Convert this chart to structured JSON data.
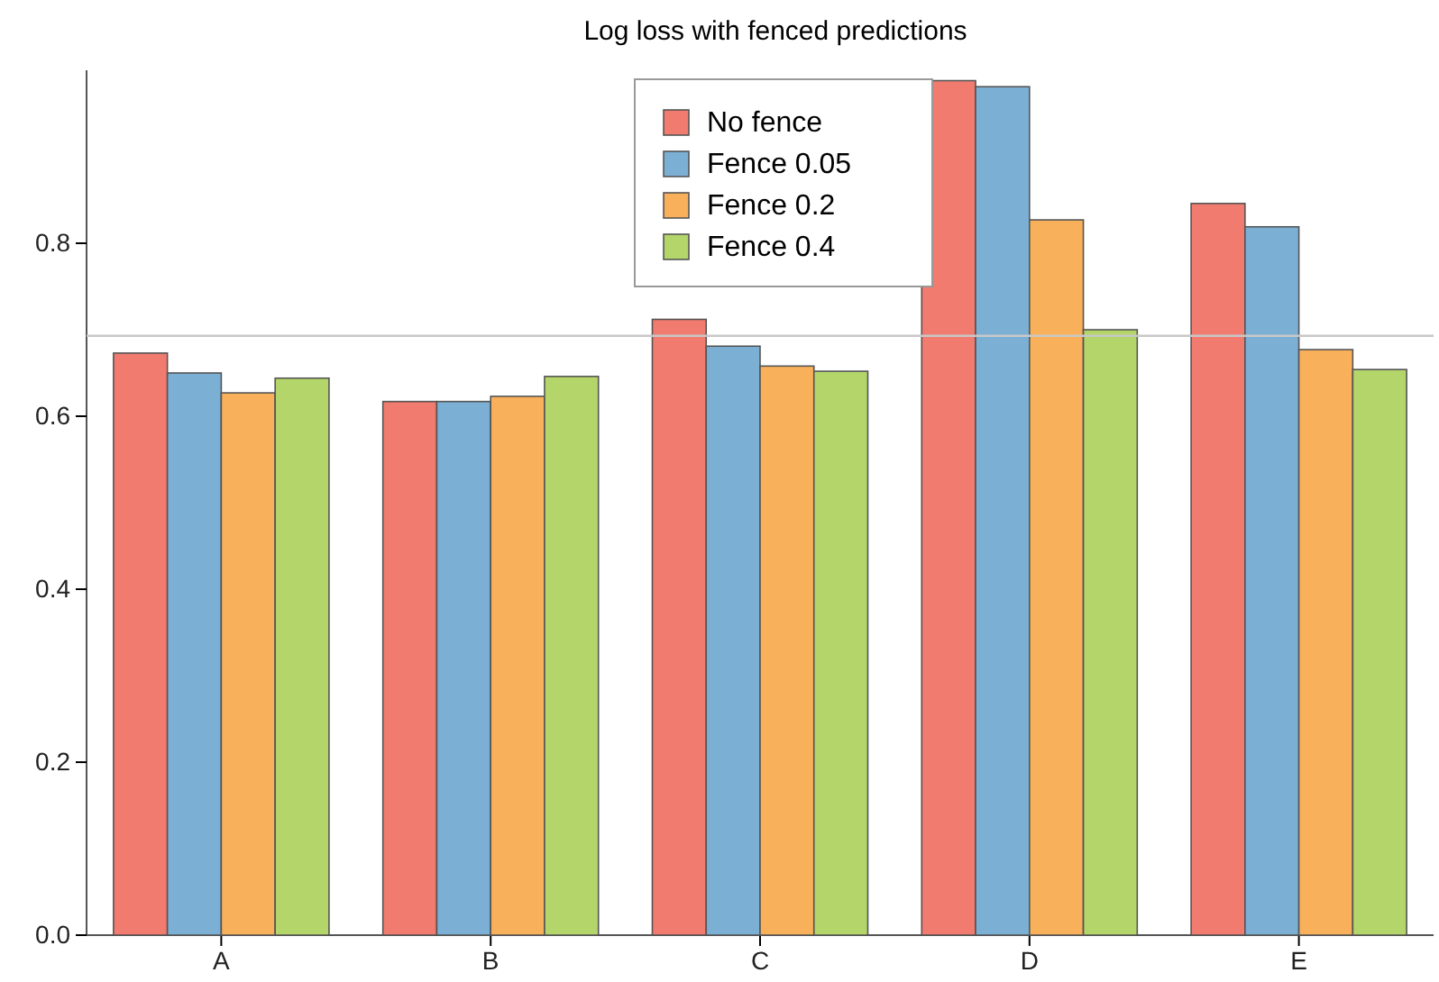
{
  "chart_data": {
    "type": "bar",
    "title": "Log loss with fenced predictions",
    "categories": [
      "A",
      "B",
      "C",
      "D",
      "E"
    ],
    "series": [
      {
        "name": "No fence",
        "color": "#f07b6e",
        "values": [
          0.673,
          0.617,
          0.712,
          0.988,
          0.846
        ]
      },
      {
        "name": "Fence 0.05",
        "color": "#7bafd4",
        "values": [
          0.65,
          0.617,
          0.681,
          0.981,
          0.819
        ]
      },
      {
        "name": "Fence 0.2",
        "color": "#f8b05a",
        "values": [
          0.627,
          0.623,
          0.658,
          0.827,
          0.677
        ]
      },
      {
        "name": "Fence 0.4",
        "color": "#b3d56a",
        "values": [
          0.644,
          0.646,
          0.652,
          0.7,
          0.654
        ]
      }
    ],
    "ylim": [
      0,
      1.0
    ],
    "yticks": [
      {
        "value": 0,
        "label": "0.0"
      },
      0.2,
      0.4,
      0.6,
      0.8
    ],
    "ref_lines": [
      {
        "axis": "y",
        "value": 0.693,
        "color": "#c8c8c8"
      }
    ],
    "legend": "top",
    "grid": false
  }
}
